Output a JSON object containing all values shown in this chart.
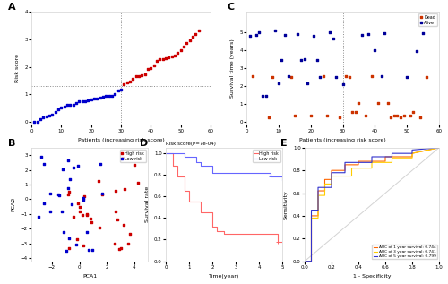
{
  "panel_A": {
    "title": "A",
    "xlabel": "Patients (increasing risk score)",
    "ylabel": "Risk score",
    "n_low": 30,
    "n_high": 26,
    "xlim": [
      0,
      60
    ],
    "ylim": [
      -0.1,
      4.0
    ],
    "yticks": [
      0,
      1,
      2,
      3,
      4
    ],
    "cutoff_x": 30,
    "cutoff_y": 1.3,
    "low_risk_color": "#0000CC",
    "high_risk_color": "#CC0000"
  },
  "panel_B": {
    "title": "B",
    "xlabel": "PCA1",
    "ylabel": "PCA2",
    "high_risk_color": "#CC0000",
    "low_risk_color": "#0000CC",
    "xlim_approx": [
      -3,
      5
    ],
    "ylim_approx": [
      -4,
      3
    ],
    "legend_labels": [
      "High risk",
      "Low risk"
    ]
  },
  "panel_C": {
    "title": "C",
    "xlabel": "Patients (increasing risk score)",
    "ylabel": "Survival time (years)",
    "xlim": [
      0,
      60
    ],
    "cutoff_x": 30,
    "dead_color": "#CC3300",
    "alive_color": "#000099",
    "legend_labels": [
      "Dead",
      "Alive"
    ]
  },
  "panel_D": {
    "title": "D",
    "subtitle": "Risk score(P=7e-04)",
    "xlabel": "Time(year)",
    "ylabel": "Survival rate",
    "high_risk_color": "#FF6666",
    "low_risk_color": "#6666FF",
    "xlim": [
      0,
      5
    ],
    "ylim": [
      0.0,
      1.05
    ],
    "yticks": [
      0.0,
      0.2,
      0.4,
      0.6,
      0.8,
      1.0
    ],
    "legend_labels": [
      "High risk",
      "Low risk"
    ]
  },
  "panel_E": {
    "title": "E",
    "xlabel": "1 - Specificity",
    "ylabel": "Sensitivity",
    "colors": [
      "#FF6600",
      "#FFCC00",
      "#3333CC"
    ],
    "auc_labels": [
      "AUC of 1 year survival: 0.744",
      "AUC of 3 year survival: 0.741",
      "AUC of 5 year survival: 0.799"
    ],
    "xlim": [
      0,
      1
    ],
    "ylim": [
      0,
      1
    ]
  }
}
